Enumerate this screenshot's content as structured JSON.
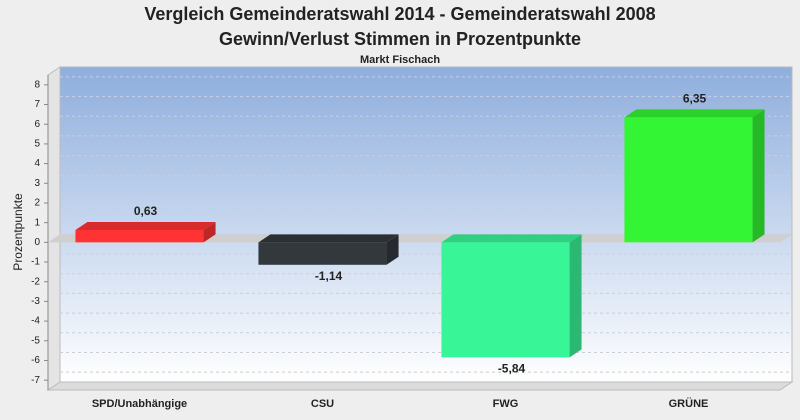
{
  "chart_data": {
    "type": "bar3d",
    "title": "Vergleich Gemeinderatswahl 2014 - Gemeinderatswahl 2008",
    "subtitle": "Gewinn/Verlust Stimmen in Prozentpunkte",
    "caption": "Markt Fischach",
    "y_label": "Prozentpunkte",
    "categories": [
      "SPD/Unabhängige",
      "CSU",
      "FWG",
      "GRÜNE"
    ],
    "values": [
      0.63,
      -1.14,
      -5.84,
      6.35
    ],
    "value_labels": [
      "0,63",
      "-1,14",
      "-5,84",
      "6,35"
    ],
    "colors": [
      "#ff3333",
      "#33383d",
      "#38f598",
      "#33f533"
    ],
    "ylim": [
      -7.5,
      8.5
    ],
    "yticks": [
      -7,
      -6,
      -5,
      -4,
      -3,
      -2,
      -1,
      0,
      1,
      2,
      3,
      4,
      5,
      6,
      7,
      8
    ],
    "grid": true
  }
}
